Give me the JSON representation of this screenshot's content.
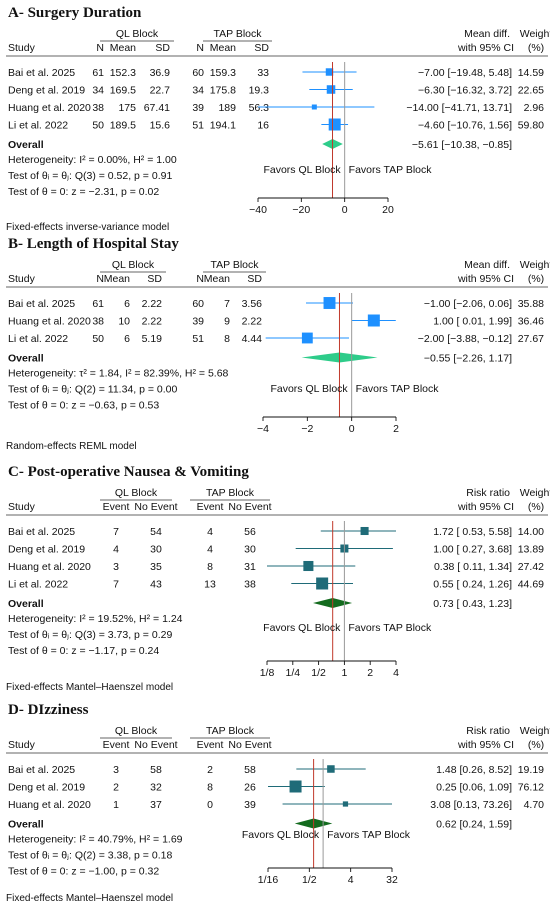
{
  "chart_data": [
    {
      "type": "forest",
      "title": "A- Surgery Duration",
      "group1": "QL Block",
      "group2": "TAP Block",
      "columns": [
        "Study",
        "N",
        "Mean",
        "SD",
        "N",
        "Mean",
        "SD"
      ],
      "effect_header": [
        "Mean diff.",
        "with 95% CI"
      ],
      "weight_header": [
        "Weight",
        "(%)"
      ],
      "xticks": [
        -40,
        -20,
        0,
        20
      ],
      "xlim": [
        -40,
        20
      ],
      "log_scale": false,
      "favors_left": "Favors QL Block",
      "favors_right": "Favors TAP Block",
      "studies": [
        {
          "name": "Bai et al. 2025",
          "cells": [
            "61",
            "152.3",
            "36.9",
            "60",
            "159.3",
            "33"
          ],
          "est": -7.0,
          "lo": -19.48,
          "hi": 5.48,
          "ci_text": "−7.00 [−19.48,   5.48]",
          "weight": "14.59",
          "w": 14.59
        },
        {
          "name": "Deng et al. 2019",
          "cells": [
            "34",
            "169.5",
            "22.7",
            "34",
            "175.8",
            "19.3"
          ],
          "est": -6.3,
          "lo": -16.32,
          "hi": 3.72,
          "ci_text": "−6.30 [−16.32,   3.72]",
          "weight": "22.65",
          "w": 22.65
        },
        {
          "name": "Huang et al. 2020",
          "cells": [
            "38",
            "175",
            "67.41",
            "39",
            "189",
            "56.3"
          ],
          "est": -14.0,
          "lo": -41.71,
          "hi": 13.71,
          "ci_text": "−14.00 [−41.71,  13.71]",
          "weight": "2.96",
          "w": 2.96
        },
        {
          "name": "Li et al. 2022",
          "cells": [
            "50",
            "189.5",
            "15.6",
            "51",
            "194.1",
            "16"
          ],
          "est": -4.6,
          "lo": -10.76,
          "hi": 1.56,
          "ci_text": "−4.60 [−10.76,   1.56]",
          "weight": "59.80",
          "w": 59.8
        }
      ],
      "overall": {
        "label": "Overall",
        "est": -5.61,
        "lo": -10.38,
        "hi": -0.85,
        "ci_text": "−5.61 [−10.38,  −0.85]"
      },
      "stats": [
        "Heterogeneity: I² = 0.00%, H² = 1.00",
        "Test of θᵢ = θⱼ: Q(3) = 0.52, p = 0.91",
        "Test of θ = 0: z = −2.31, p = 0.02"
      ],
      "model": "Fixed-effects inverse-variance model",
      "marker_color": "#1e90ff",
      "diamond_color": "#2ecc8a"
    },
    {
      "type": "forest",
      "title": "B- Length of Hospital Stay",
      "group1": "QL Block",
      "group2": "TAP Block",
      "columns": [
        "Study",
        "N",
        "Mean",
        "SD",
        "N",
        "Mean",
        "SD"
      ],
      "effect_header": [
        "Mean diff.",
        "with 95% CI"
      ],
      "weight_header": [
        "Weight",
        "(%)"
      ],
      "xticks": [
        -4,
        -2,
        0,
        2
      ],
      "xlim": [
        -4,
        2
      ],
      "log_scale": false,
      "favors_left": "Favors QL Block",
      "favors_right": "Favors TAP Block",
      "studies": [
        {
          "name": "Bai et al. 2025",
          "cells": [
            "61",
            "6",
            "2.22",
            "60",
            "7",
            "3.56"
          ],
          "est": -1.0,
          "lo": -2.06,
          "hi": 0.06,
          "ci_text": "−1.00 [−2.06,  0.06]",
          "weight": "35.88",
          "w": 35.88
        },
        {
          "name": "Huang et al. 2020",
          "cells": [
            "38",
            "10",
            "2.22",
            "39",
            "9",
            "2.22"
          ],
          "est": 1.0,
          "lo": 0.01,
          "hi": 1.99,
          "ci_text": "1.00 [ 0.01,  1.99]",
          "weight": "36.46",
          "w": 36.46
        },
        {
          "name": "Li et al. 2022",
          "cells": [
            "50",
            "6",
            "5.19",
            "51",
            "8",
            "4.44"
          ],
          "est": -2.0,
          "lo": -3.88,
          "hi": -0.12,
          "ci_text": "−2.00 [−3.88, −0.12]",
          "weight": "27.67",
          "w": 27.67
        }
      ],
      "overall": {
        "label": "Overall",
        "est": -0.55,
        "lo": -2.26,
        "hi": 1.17,
        "ci_text": "−0.55 [−2.26,  1.17]"
      },
      "stats": [
        "Heterogeneity: τ² = 1.84, I² = 82.39%, H² = 5.68",
        "Test of θᵢ = θⱼ: Q(2) = 11.34, p = 0.00",
        "Test of θ = 0: z = −0.63, p = 0.53"
      ],
      "model": "Random-effects REML model",
      "marker_color": "#1e90ff",
      "diamond_color": "#2ecc8a"
    },
    {
      "type": "forest",
      "title": "C- Post-operative Nausea & Vomiting",
      "group1": "QL Block",
      "group2": "TAP Block",
      "columns": [
        "Study",
        "Event",
        "No Event",
        "Event",
        "No Event"
      ],
      "effect_header": [
        "Risk ratio",
        "with 95% CI"
      ],
      "weight_header": [
        "Weight",
        "(%)"
      ],
      "xticks": [
        0.125,
        0.25,
        0.5,
        1,
        2,
        4
      ],
      "xtick_labels": [
        "1/8",
        "1/4",
        "1/2",
        "1",
        "2",
        "4"
      ],
      "xlim": [
        0.125,
        4
      ],
      "log_scale": true,
      "favors_left": "Favors QL Block",
      "favors_right": "Favors TAP Block",
      "studies": [
        {
          "name": "Bai et al. 2025",
          "cells": [
            "7",
            "54",
            "4",
            "56"
          ],
          "est": 1.72,
          "lo": 0.53,
          "hi": 5.58,
          "ci_text": "1.72 [ 0.53, 5.58]",
          "weight": "14.00",
          "w": 14.0
        },
        {
          "name": "Deng et al. 2019",
          "cells": [
            "4",
            "30",
            "4",
            "30"
          ],
          "est": 1.0,
          "lo": 0.27,
          "hi": 3.68,
          "ci_text": "1.00 [ 0.27, 3.68]",
          "weight": "13.89",
          "w": 13.89
        },
        {
          "name": "Huang et al. 2020",
          "cells": [
            "3",
            "35",
            "8",
            "31"
          ],
          "est": 0.38,
          "lo": 0.11,
          "hi": 1.34,
          "ci_text": "0.38 [ 0.11, 1.34]",
          "weight": "27.42",
          "w": 27.42
        },
        {
          "name": "Li et al. 2022",
          "cells": [
            "7",
            "43",
            "13",
            "38"
          ],
          "est": 0.55,
          "lo": 0.24,
          "hi": 1.26,
          "ci_text": "0.55 [ 0.24, 1.26]",
          "weight": "44.69",
          "w": 44.69
        }
      ],
      "overall": {
        "label": "Overall",
        "est": 0.73,
        "lo": 0.43,
        "hi": 1.23,
        "ci_text": "0.73 [ 0.43, 1.23]"
      },
      "stats": [
        "Heterogeneity: I² = 19.52%, H² = 1.24",
        "Test of θᵢ = θⱼ: Q(3) = 3.73, p = 0.29",
        "Test of θ = 0: z = −1.17, p = 0.24"
      ],
      "model": "Fixed-effects Mantel–Haenszel model",
      "marker_color": "#1f6b78",
      "diamond_color": "#136b1e"
    },
    {
      "type": "forest",
      "title": "D- DIzziness",
      "group1": "QL Block",
      "group2": "TAP Block",
      "columns": [
        "Study",
        "Event",
        "No Event",
        "Event",
        "No Event"
      ],
      "effect_header": [
        "Risk ratio",
        "with 95% CI"
      ],
      "weight_header": [
        "Weight",
        "(%)"
      ],
      "xticks": [
        0.0625,
        0.5,
        4,
        32
      ],
      "xtick_labels": [
        "1/16",
        "1/2",
        "4",
        "32"
      ],
      "xlim": [
        0.0625,
        32
      ],
      "log_scale": true,
      "favors_left": "Favors QL Block",
      "favors_right": "Favors TAP Block",
      "studies": [
        {
          "name": "Bai et al. 2025",
          "cells": [
            "3",
            "58",
            "2",
            "58"
          ],
          "est": 1.48,
          "lo": 0.26,
          "hi": 8.52,
          "ci_text": "1.48 [0.26,   8.52]",
          "weight": "19.19",
          "w": 19.19
        },
        {
          "name": "Deng et al. 2019",
          "cells": [
            "2",
            "32",
            "8",
            "26"
          ],
          "est": 0.25,
          "lo": 0.06,
          "hi": 1.09,
          "ci_text": "0.25 [0.06,   1.09]",
          "weight": "76.12",
          "w": 76.12
        },
        {
          "name": "Huang et al. 2020",
          "cells": [
            "1",
            "37",
            "0",
            "39"
          ],
          "est": 3.08,
          "lo": 0.13,
          "hi": 73.26,
          "ci_text": "3.08 [0.13, 73.26]",
          "weight": "4.70",
          "w": 4.7
        }
      ],
      "overall": {
        "label": "Overall",
        "est": 0.62,
        "lo": 0.24,
        "hi": 1.59,
        "ci_text": "0.62 [0.24,   1.59]"
      },
      "stats": [
        "Heterogeneity: I² = 40.79%, H² = 1.69",
        "Test of θᵢ = θⱼ: Q(2) = 3.38, p = 0.18",
        "Test of θ = 0: z = −1.00, p = 0.32"
      ],
      "model": "Fixed-effects Mantel–Haenszel model",
      "marker_color": "#1f6b78",
      "diamond_color": "#136b1e"
    }
  ]
}
